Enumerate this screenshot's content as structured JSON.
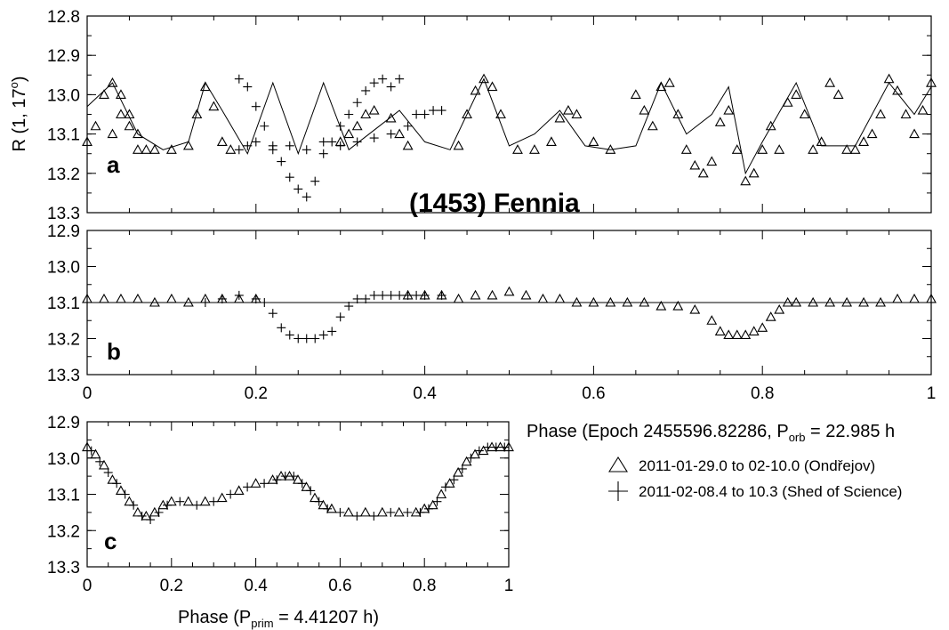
{
  "figure": {
    "title": "(1453) Fennia",
    "ylabel_prefix": "R (1, 17",
    "ylabel_sup": "o",
    "ylabel_suffix": ")",
    "xlabel_top_prefix": "Phase (Epoch 2455596.82286, P",
    "xlabel_top_sub": "orb",
    "xlabel_top_suffix": " = 22.985 h",
    "xlabel_bottom_prefix": "Phase (P",
    "xlabel_bottom_sub": "prim",
    "xlabel_bottom_suffix": " = 4.41207 h)"
  },
  "legend": {
    "entries": [
      {
        "marker": "triangle",
        "label": "2011-01-29.0 to 02-10.0 (Ondřejov)"
      },
      {
        "marker": "plus",
        "label": "2011-02-08.4 to 10.3 (Shed of Science)"
      }
    ]
  },
  "chart_data": [
    {
      "panel": "a",
      "type": "scatter",
      "xlim": [
        0,
        1
      ],
      "ylim": [
        13.3,
        12.8
      ],
      "y_inverted": true,
      "y_ticks": [
        "12.8",
        "12.9",
        "13.0",
        "13.1",
        "13.2",
        "13.3"
      ],
      "model_curve": {
        "x": [
          0,
          0.03,
          0.06,
          0.09,
          0.12,
          0.14,
          0.16,
          0.19,
          0.22,
          0.25,
          0.28,
          0.31,
          0.34,
          0.37,
          0.4,
          0.43,
          0.47,
          0.5,
          0.53,
          0.56,
          0.59,
          0.62,
          0.65,
          0.68,
          0.71,
          0.74,
          0.76,
          0.78,
          0.8,
          0.84,
          0.87,
          0.91,
          0.95,
          0.98,
          1.0
        ],
        "y": [
          13.03,
          12.97,
          13.1,
          13.14,
          13.12,
          12.97,
          13.04,
          13.15,
          12.97,
          13.15,
          12.97,
          13.14,
          13.09,
          13.04,
          13.12,
          13.14,
          12.96,
          13.13,
          13.1,
          13.04,
          13.13,
          13.14,
          13.13,
          12.97,
          13.1,
          13.05,
          12.98,
          13.2,
          13.12,
          12.97,
          13.13,
          13.13,
          12.97,
          13.05,
          12.98
        ]
      },
      "series": [
        {
          "name": "2011-01-29.0 to 02-10.0 (Ondřejov)",
          "marker": "triangle",
          "x": [
            0.0,
            0.01,
            0.02,
            0.03,
            0.04,
            0.05,
            0.06,
            0.08,
            0.1,
            0.12,
            0.13,
            0.14,
            0.15,
            0.16,
            0.17,
            0.03,
            0.04,
            0.05,
            0.06,
            0.07,
            0.33,
            0.34,
            0.36,
            0.37,
            0.38,
            0.3,
            0.31,
            0.32,
            0.44,
            0.45,
            0.46,
            0.47,
            0.48,
            0.49,
            0.51,
            0.53,
            0.55,
            0.56,
            0.57,
            0.58,
            0.6,
            0.62,
            0.65,
            0.66,
            0.67,
            0.68,
            0.69,
            0.7,
            0.71,
            0.72,
            0.73,
            0.74,
            0.75,
            0.76,
            0.77,
            0.78,
            0.79,
            0.8,
            0.81,
            0.82,
            0.83,
            0.84,
            0.85,
            0.86,
            0.87,
            0.88,
            0.89,
            0.9,
            0.91,
            0.92,
            0.93,
            0.94,
            0.95,
            0.96,
            0.97,
            0.98,
            0.99,
            1.0
          ],
          "y": [
            13.12,
            13.08,
            13.0,
            12.97,
            13.0,
            13.08,
            13.14,
            13.14,
            13.14,
            13.13,
            13.05,
            12.98,
            13.03,
            13.12,
            13.14,
            13.1,
            13.05,
            13.05,
            13.1,
            13.14,
            13.05,
            13.04,
            13.06,
            13.1,
            13.13,
            13.12,
            13.1,
            13.08,
            13.13,
            13.05,
            12.99,
            12.96,
            12.98,
            13.05,
            13.14,
            13.14,
            13.12,
            13.06,
            13.04,
            13.05,
            13.12,
            13.14,
            13.0,
            13.04,
            13.08,
            12.98,
            12.97,
            13.05,
            13.14,
            13.18,
            13.2,
            13.17,
            13.07,
            13.04,
            13.14,
            13.22,
            13.2,
            13.14,
            13.08,
            13.14,
            13.02,
            13.0,
            13.05,
            13.14,
            13.12,
            12.97,
            13.0,
            13.14,
            13.14,
            13.12,
            13.1,
            13.05,
            12.96,
            12.99,
            13.05,
            13.1,
            13.04,
            12.97
          ]
        },
        {
          "name": "2011-02-08.4 to 10.3 (Shed of Science)",
          "marker": "plus",
          "x": [
            0.18,
            0.19,
            0.2,
            0.21,
            0.22,
            0.23,
            0.24,
            0.25,
            0.26,
            0.27,
            0.28,
            0.29,
            0.3,
            0.31,
            0.32,
            0.33,
            0.34,
            0.35,
            0.36,
            0.37,
            0.18,
            0.19,
            0.2,
            0.22,
            0.24,
            0.26,
            0.28,
            0.3,
            0.32,
            0.34,
            0.36,
            0.38,
            0.39,
            0.4,
            0.41,
            0.42
          ],
          "y": [
            12.96,
            12.98,
            13.03,
            13.08,
            13.13,
            13.17,
            13.21,
            13.24,
            13.26,
            13.22,
            13.15,
            13.12,
            13.08,
            13.05,
            13.02,
            12.99,
            12.97,
            12.96,
            12.98,
            12.96,
            13.14,
            13.13,
            13.12,
            13.14,
            13.13,
            13.14,
            13.12,
            13.13,
            13.12,
            13.11,
            13.1,
            13.08,
            13.05,
            13.05,
            13.04,
            13.04
          ]
        }
      ]
    },
    {
      "panel": "b",
      "type": "scatter",
      "xlim": [
        0,
        1
      ],
      "ylim": [
        13.3,
        12.9
      ],
      "y_inverted": true,
      "x_ticks": [
        "0",
        "0.2",
        "0.4",
        "0.6",
        "0.8",
        "1"
      ],
      "y_ticks": [
        "12.9",
        "13.0",
        "13.1",
        "13.2",
        "13.3"
      ],
      "model_level": 13.1,
      "series": [
        {
          "name": "2011-01-29.0 to 02-10.0 (Ondřejov)",
          "marker": "triangle",
          "x": [
            0.0,
            0.02,
            0.04,
            0.06,
            0.08,
            0.1,
            0.12,
            0.14,
            0.16,
            0.18,
            0.2,
            0.38,
            0.4,
            0.42,
            0.44,
            0.46,
            0.48,
            0.5,
            0.52,
            0.54,
            0.56,
            0.58,
            0.6,
            0.62,
            0.64,
            0.66,
            0.68,
            0.7,
            0.72,
            0.74,
            0.75,
            0.76,
            0.77,
            0.78,
            0.79,
            0.8,
            0.81,
            0.82,
            0.83,
            0.84,
            0.86,
            0.88,
            0.9,
            0.92,
            0.94,
            0.96,
            0.98,
            1.0
          ],
          "y": [
            13.09,
            13.09,
            13.09,
            13.09,
            13.1,
            13.09,
            13.1,
            13.09,
            13.09,
            13.09,
            13.09,
            13.08,
            13.08,
            13.08,
            13.09,
            13.08,
            13.08,
            13.07,
            13.08,
            13.09,
            13.09,
            13.1,
            13.1,
            13.1,
            13.1,
            13.1,
            13.11,
            13.11,
            13.12,
            13.15,
            13.18,
            13.19,
            13.19,
            13.19,
            13.18,
            13.17,
            13.14,
            13.12,
            13.1,
            13.1,
            13.1,
            13.1,
            13.1,
            13.1,
            13.1,
            13.09,
            13.09,
            13.09
          ]
        },
        {
          "name": "2011-02-08.4 to 10.3 (Shed of Science)",
          "marker": "plus",
          "x": [
            0.14,
            0.16,
            0.18,
            0.2,
            0.21,
            0.22,
            0.23,
            0.24,
            0.25,
            0.26,
            0.27,
            0.28,
            0.29,
            0.3,
            0.31,
            0.32,
            0.33,
            0.34,
            0.35,
            0.36,
            0.37,
            0.38,
            0.39,
            0.4,
            0.42
          ],
          "y": [
            13.1,
            13.09,
            13.08,
            13.09,
            13.1,
            13.13,
            13.17,
            13.19,
            13.2,
            13.2,
            13.2,
            13.19,
            13.18,
            13.14,
            13.11,
            13.09,
            13.09,
            13.08,
            13.08,
            13.08,
            13.08,
            13.08,
            13.08,
            13.08,
            13.08
          ]
        }
      ]
    },
    {
      "panel": "c",
      "type": "scatter",
      "xlim": [
        0,
        1
      ],
      "ylim": [
        13.3,
        12.9
      ],
      "y_inverted": true,
      "x_ticks": [
        "0",
        "0.2",
        "0.4",
        "0.6",
        "0.8",
        "1"
      ],
      "y_ticks": [
        "12.9",
        "13.0",
        "13.1",
        "13.2",
        "13.3"
      ],
      "series": [
        {
          "name": "2011-01-29.0 to 02-10.0 (Ondřejov)",
          "marker": "triangle",
          "x": [
            0.0,
            0.02,
            0.04,
            0.06,
            0.08,
            0.1,
            0.12,
            0.14,
            0.16,
            0.18,
            0.2,
            0.24,
            0.28,
            0.32,
            0.36,
            0.4,
            0.44,
            0.46,
            0.48,
            0.5,
            0.52,
            0.54,
            0.56,
            0.58,
            0.62,
            0.66,
            0.7,
            0.74,
            0.78,
            0.8,
            0.82,
            0.84,
            0.86,
            0.88,
            0.9,
            0.92,
            0.94,
            0.96,
            0.98,
            1.0
          ],
          "y": [
            12.97,
            12.99,
            13.02,
            13.06,
            13.09,
            13.12,
            13.15,
            13.16,
            13.15,
            13.13,
            13.12,
            13.12,
            13.12,
            13.11,
            13.09,
            13.07,
            13.06,
            13.05,
            13.05,
            13.06,
            13.08,
            13.11,
            13.13,
            13.14,
            13.15,
            13.15,
            13.15,
            13.15,
            13.15,
            13.14,
            13.13,
            13.1,
            13.07,
            13.04,
            13.01,
            12.99,
            12.98,
            12.97,
            12.97,
            12.97
          ]
        },
        {
          "name": "2011-02-08.4 to 10.3 (Shed of Science)",
          "marker": "plus",
          "x": [
            0.01,
            0.03,
            0.05,
            0.07,
            0.09,
            0.11,
            0.13,
            0.15,
            0.17,
            0.19,
            0.22,
            0.26,
            0.3,
            0.34,
            0.38,
            0.42,
            0.45,
            0.47,
            0.49,
            0.51,
            0.53,
            0.55,
            0.57,
            0.6,
            0.64,
            0.68,
            0.72,
            0.76,
            0.79,
            0.81,
            0.83,
            0.85,
            0.87,
            0.89,
            0.91,
            0.93,
            0.95,
            0.97,
            0.99
          ],
          "y": [
            12.98,
            13.01,
            13.04,
            13.07,
            13.1,
            13.13,
            13.16,
            13.17,
            13.15,
            13.13,
            13.12,
            13.13,
            13.12,
            13.1,
            13.08,
            13.07,
            13.06,
            13.05,
            13.05,
            13.07,
            13.09,
            13.12,
            13.14,
            13.15,
            13.16,
            13.16,
            13.15,
            13.15,
            13.15,
            13.14,
            13.12,
            13.08,
            13.06,
            13.03,
            13.0,
            12.98,
            12.97,
            12.97,
            12.97
          ]
        }
      ]
    }
  ]
}
